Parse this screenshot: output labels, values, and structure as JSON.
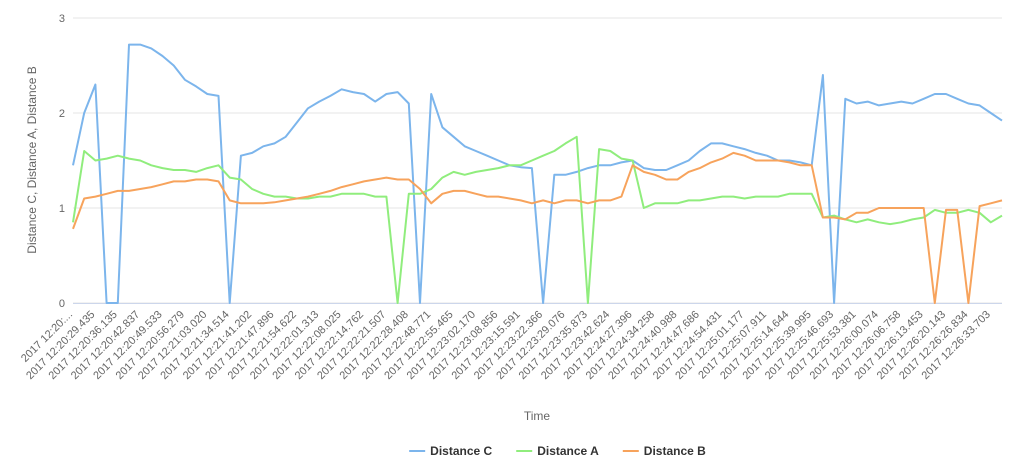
{
  "chart_data": {
    "type": "line",
    "y_label": "Distance C, Distance A, Distance B",
    "x_label": "Time",
    "ylim": [
      0,
      3
    ],
    "yticks": [
      0,
      1,
      2,
      3
    ],
    "grid": true,
    "legend": "bottom",
    "categories": [
      "2017 12:20:...",
      null,
      "2017 12:20:29.435",
      null,
      "2017 12:20:36.135",
      null,
      "2017 12:20:42.837",
      null,
      "2017 12:20:49.533",
      null,
      "2017 12:20:56.279",
      null,
      "2017 12:21:03.020",
      null,
      "2017 12:21:34.514",
      null,
      "2017 12:21:41.202",
      null,
      "2017 12:21:47.896",
      null,
      "2017 12:21:54.622",
      null,
      "2017 12:22:01.313",
      null,
      "2017 12:22:08.025",
      null,
      "2017 12:22:14.762",
      null,
      "2017 12:22:21.507",
      null,
      "2017 12:22:28.408",
      null,
      "2017 12:22:48.771",
      null,
      "2017 12:22:55.465",
      null,
      "2017 12:23:02.170",
      null,
      "2017 12:23:08.856",
      null,
      "2017 12:23:15.591",
      null,
      "2017 12:23:22.366",
      null,
      "2017 12:23:29.076",
      null,
      "2017 12:23:35.873",
      null,
      "2017 12:23:42.624",
      null,
      "2017 12:24:27.396",
      null,
      "2017 12:24:34.258",
      null,
      "2017 12:24:40.988",
      null,
      "2017 12:24:47.686",
      null,
      "2017 12:24:54.431",
      null,
      "2017 12:25:01.177",
      null,
      "2017 12:25:07.911",
      null,
      "2017 12:25:14.644",
      null,
      "2017 12:25:39.995",
      null,
      "2017 12:25:46.693",
      null,
      "2017 12:25:53.381",
      null,
      "2017 12:26:00.074",
      null,
      "2017 12:26:06.758",
      null,
      "2017 12:26:13.453",
      null,
      "2017 12:26:20.143",
      null,
      "2017 12:26:26.834",
      null,
      "2017 12:26:33.703",
      null
    ],
    "series": [
      {
        "name": "Distance C",
        "color": "#7cb5ec",
        "values": [
          1.45,
          2.0,
          2.3,
          0,
          0,
          2.72,
          2.72,
          2.68,
          2.6,
          2.5,
          2.35,
          2.28,
          2.2,
          2.18,
          0,
          1.55,
          1.58,
          1.65,
          1.68,
          1.75,
          1.9,
          2.05,
          2.12,
          2.18,
          2.25,
          2.22,
          2.2,
          2.12,
          2.2,
          2.22,
          2.1,
          0,
          2.2,
          1.85,
          1.75,
          1.65,
          1.6,
          1.55,
          1.5,
          1.45,
          1.43,
          1.42,
          0,
          1.35,
          1.35,
          1.38,
          1.42,
          1.45,
          1.45,
          1.48,
          1.5,
          1.42,
          1.4,
          1.4,
          1.45,
          1.5,
          1.6,
          1.68,
          1.68,
          1.65,
          1.62,
          1.58,
          1.55,
          1.5,
          1.5,
          1.48,
          1.45,
          2.4,
          0,
          2.15,
          2.1,
          2.12,
          2.08,
          2.1,
          2.12,
          2.1,
          2.15,
          2.2,
          2.2,
          2.15,
          2.1,
          2.08,
          2.0,
          1.92
        ]
      },
      {
        "name": "Distance A",
        "color": "#90ed7d",
        "values": [
          0.85,
          1.6,
          1.5,
          1.52,
          1.55,
          1.52,
          1.5,
          1.45,
          1.42,
          1.4,
          1.4,
          1.38,
          1.42,
          1.45,
          1.32,
          1.3,
          1.2,
          1.15,
          1.12,
          1.12,
          1.1,
          1.1,
          1.12,
          1.12,
          1.15,
          1.15,
          1.15,
          1.12,
          1.12,
          0,
          1.15,
          1.15,
          1.2,
          1.32,
          1.38,
          1.35,
          1.38,
          1.4,
          1.42,
          1.45,
          1.45,
          1.5,
          1.55,
          1.6,
          1.68,
          1.75,
          0,
          1.62,
          1.6,
          1.52,
          1.5,
          1.0,
          1.05,
          1.05,
          1.05,
          1.08,
          1.08,
          1.1,
          1.12,
          1.12,
          1.1,
          1.12,
          1.12,
          1.12,
          1.15,
          1.15,
          1.15,
          0.9,
          0.92,
          0.88,
          0.85,
          0.88,
          0.85,
          0.83,
          0.85,
          0.88,
          0.9,
          0.98,
          0.95,
          0.95,
          0.98,
          0.95,
          0.85,
          0.92
        ]
      },
      {
        "name": "Distance B",
        "color": "#f7a35c",
        "values": [
          0.78,
          1.1,
          1.12,
          1.15,
          1.18,
          1.18,
          1.2,
          1.22,
          1.25,
          1.28,
          1.28,
          1.3,
          1.3,
          1.28,
          1.08,
          1.05,
          1.05,
          1.05,
          1.06,
          1.08,
          1.1,
          1.12,
          1.15,
          1.18,
          1.22,
          1.25,
          1.28,
          1.3,
          1.32,
          1.3,
          1.3,
          1.2,
          1.05,
          1.15,
          1.18,
          1.18,
          1.15,
          1.12,
          1.12,
          1.1,
          1.08,
          1.05,
          1.08,
          1.05,
          1.08,
          1.08,
          1.05,
          1.08,
          1.08,
          1.12,
          1.45,
          1.38,
          1.35,
          1.3,
          1.3,
          1.38,
          1.42,
          1.48,
          1.52,
          1.58,
          1.55,
          1.5,
          1.5,
          1.5,
          1.48,
          1.45,
          1.45,
          0.9,
          0.9,
          0.88,
          0.95,
          0.95,
          1.0,
          1.0,
          1.0,
          1.0,
          1.0,
          0,
          0.98,
          0.98,
          0,
          1.02,
          1.05,
          1.08
        ]
      }
    ]
  }
}
